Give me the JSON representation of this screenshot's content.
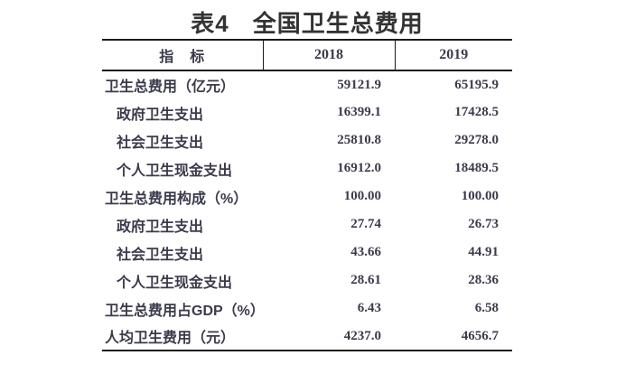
{
  "page": {
    "title_no": "表4",
    "title_text": "全国卫生总费用"
  },
  "colors": {
    "text": "#3b3b4c",
    "title": "#333333",
    "border": "#1a1a1a",
    "background": "#ffffff"
  },
  "table": {
    "columns": [
      "指　标",
      "2018",
      "2019"
    ],
    "rows": [
      {
        "label": "卫生总费用（亿元）",
        "indent": false,
        "v2018": "59121.9",
        "v2019": "65195.9"
      },
      {
        "label": "政府卫生支出",
        "indent": true,
        "v2018": "16399.1",
        "v2019": "17428.5"
      },
      {
        "label": "社会卫生支出",
        "indent": true,
        "v2018": "25810.8",
        "v2019": "29278.0"
      },
      {
        "label": "个人卫生现金支出",
        "indent": true,
        "v2018": "16912.0",
        "v2019": "18489.5"
      },
      {
        "label": "卫生总费用构成（%）",
        "indent": false,
        "v2018": "100.00",
        "v2019": "100.00"
      },
      {
        "label": "政府卫生支出",
        "indent": true,
        "v2018": "27.74",
        "v2019": "26.73"
      },
      {
        "label": "社会卫生支出",
        "indent": true,
        "v2018": "43.66",
        "v2019": "44.91"
      },
      {
        "label": "个人卫生现金支出",
        "indent": true,
        "v2018": "28.61",
        "v2019": "28.36"
      },
      {
        "label": "卫生总费用占GDP（%）",
        "indent": false,
        "v2018": "6.43",
        "v2019": "6.58"
      },
      {
        "label": "人均卫生费用（元）",
        "indent": false,
        "v2018": "4237.0",
        "v2019": "4656.7"
      }
    ]
  }
}
